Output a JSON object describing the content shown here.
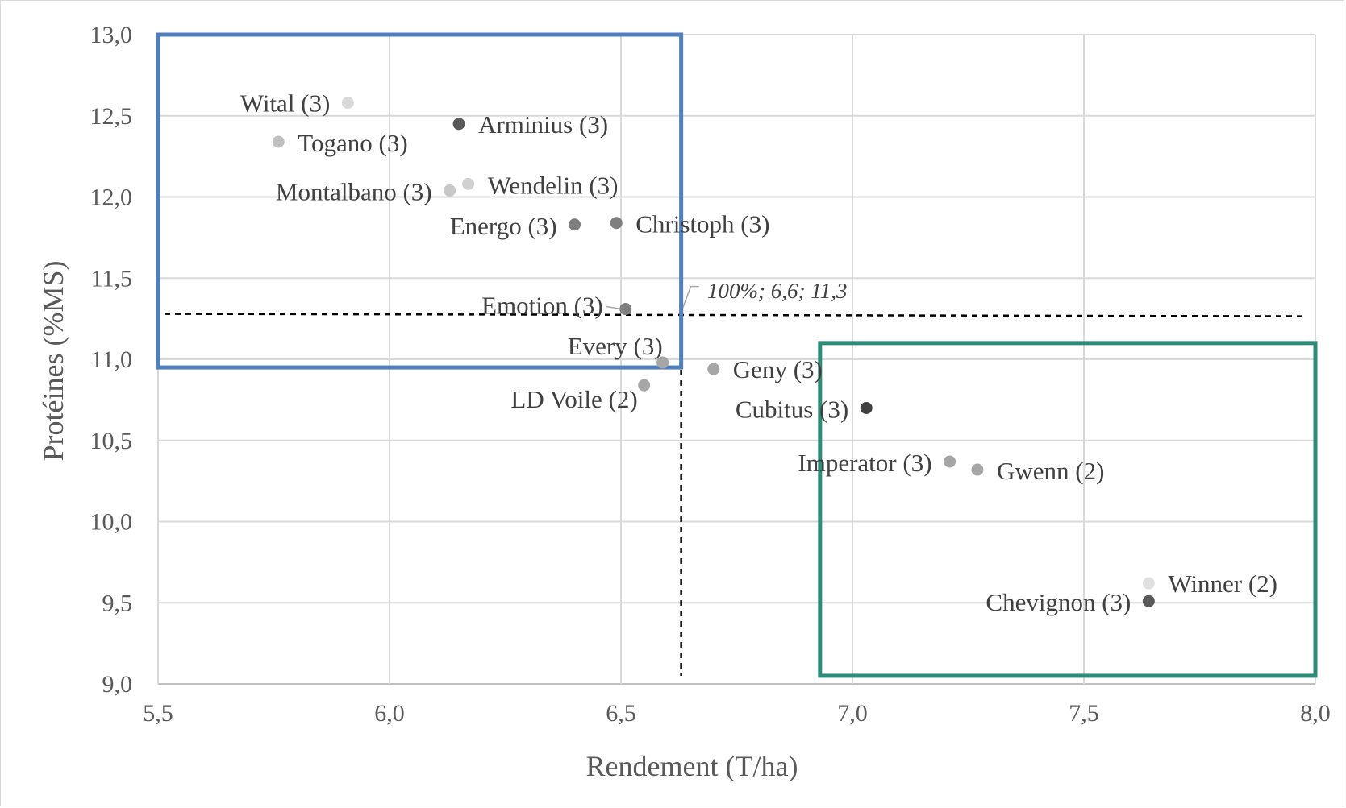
{
  "chart_data": {
    "type": "scatter",
    "xlabel": "Rendement (T/ha)",
    "ylabel": "Protéines (%MS)",
    "xlim": [
      5.5,
      8.0
    ],
    "ylim": [
      9.0,
      13.0
    ],
    "x_ticks": [
      "5,5",
      "6,0",
      "6,5",
      "7,0",
      "7,5",
      "8,0"
    ],
    "y_ticks": [
      "9,0",
      "9,5",
      "10,0",
      "10,5",
      "11,0",
      "11,5",
      "12,0",
      "12,5",
      "13,0"
    ],
    "grid": true,
    "reference_lines": {
      "x": 6.63,
      "y": 11.28
    },
    "callout": "100%; 6,6; 11,3",
    "points": [
      {
        "label": "Wital (3)",
        "x": 5.91,
        "y": 12.58,
        "color": "#d9d9d9"
      },
      {
        "label": "Arminius (3)",
        "x": 6.15,
        "y": 12.45,
        "color": "#595959"
      },
      {
        "label": "Togano (3)",
        "x": 5.76,
        "y": 12.34,
        "color": "#bfbfbf"
      },
      {
        "label": "Wendelin (3)",
        "x": 6.17,
        "y": 12.08,
        "color": "#d0d0d0"
      },
      {
        "label": "Montalbano (3)",
        "x": 6.13,
        "y": 12.04,
        "color": "#c8c8c8"
      },
      {
        "label": "Energo (3)",
        "x": 6.4,
        "y": 11.83,
        "color": "#7f7f7f"
      },
      {
        "label": "Christoph (3)",
        "x": 6.49,
        "y": 11.84,
        "color": "#7f7f7f"
      },
      {
        "label": "Emotion (3)",
        "x": 6.51,
        "y": 11.31,
        "color": "#7f7f7f"
      },
      {
        "label": "Every (3)",
        "x": 6.59,
        "y": 10.98,
        "color": "#a6a6a6"
      },
      {
        "label": "LD Voile (2)",
        "x": 6.55,
        "y": 10.84,
        "color": "#a6a6a6"
      },
      {
        "label": "Geny (3)",
        "x": 6.7,
        "y": 10.94,
        "color": "#a6a6a6"
      },
      {
        "label": "Cubitus (3)",
        "x": 7.03,
        "y": 10.7,
        "color": "#404040"
      },
      {
        "label": "Imperator (3)",
        "x": 7.21,
        "y": 10.37,
        "color": "#a6a6a6"
      },
      {
        "label": "Gwenn (2)",
        "x": 7.27,
        "y": 10.32,
        "color": "#a6a6a6"
      },
      {
        "label": "Winner (2)",
        "x": 7.64,
        "y": 9.62,
        "color": "#e0e0e0"
      },
      {
        "label": "Chevignon (3)",
        "x": 7.64,
        "y": 9.51,
        "color": "#595959"
      }
    ],
    "highlight_boxes": [
      {
        "x_range": [
          5.5,
          6.63
        ],
        "y_range": [
          10.95,
          13.0
        ],
        "color": "#4f7fbf"
      },
      {
        "x_range": [
          6.93,
          8.0
        ],
        "y_range": [
          9.05,
          11.1
        ],
        "color": "#2e8b77"
      }
    ]
  }
}
